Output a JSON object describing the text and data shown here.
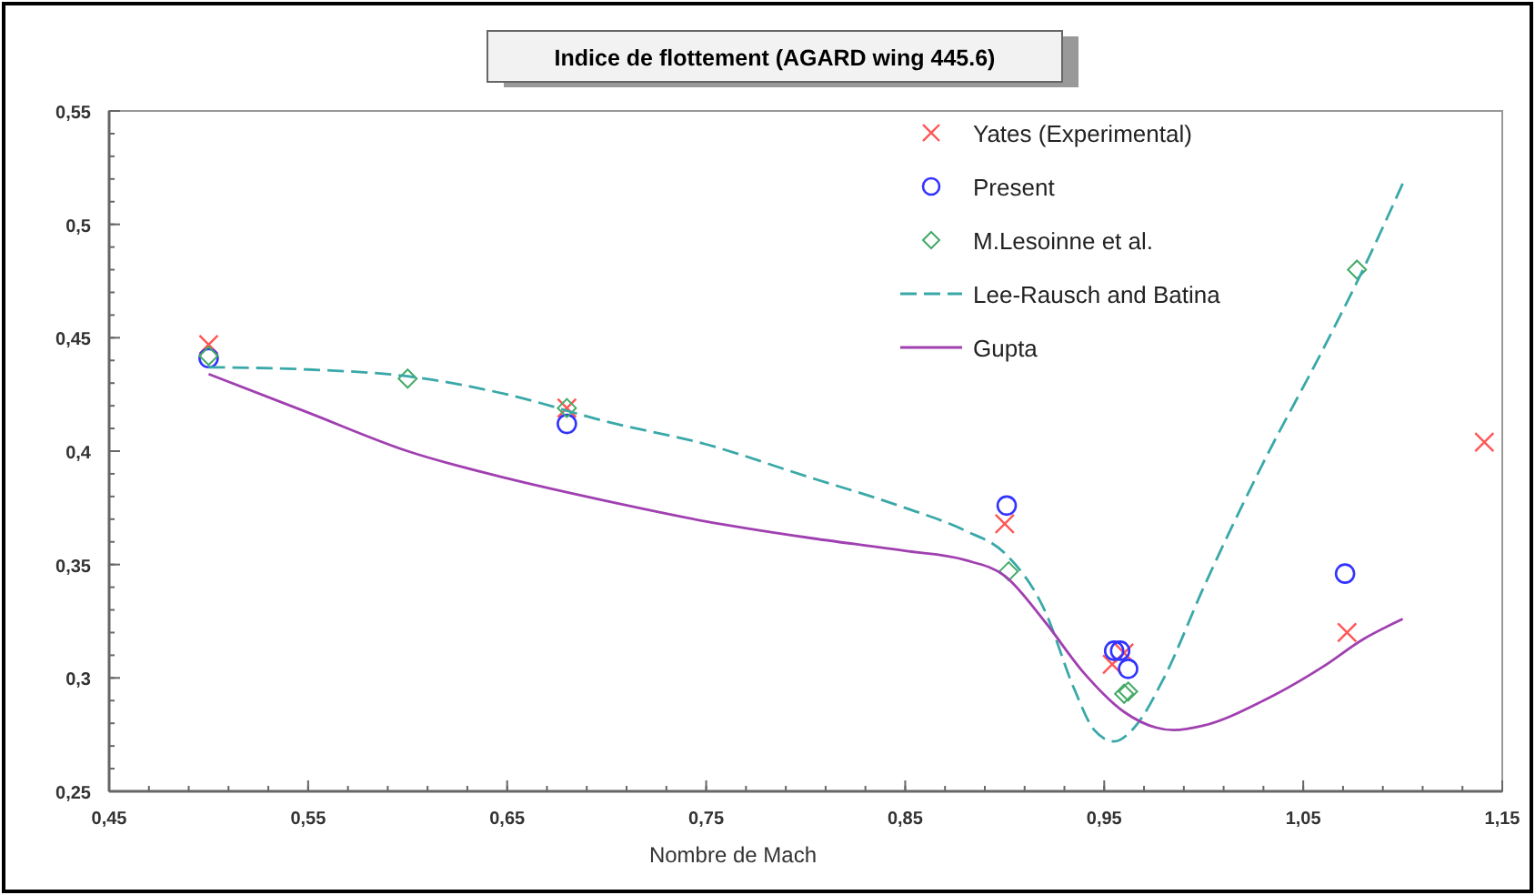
{
  "chart_data": {
    "type": "scatter",
    "title": "Indice de flottement (AGARD wing 445.6)",
    "xlabel": "Nombre de Mach",
    "xlim": [
      0.45,
      1.15
    ],
    "ylim": [
      0.25,
      0.55
    ],
    "xticks": [
      {
        "value": 0.45,
        "label": "0,45"
      },
      {
        "value": 0.55,
        "label": "0,55"
      },
      {
        "value": 0.65,
        "label": "0,65"
      },
      {
        "value": 0.75,
        "label": "0,75"
      },
      {
        "value": 0.85,
        "label": "0,85"
      },
      {
        "value": 0.95,
        "label": "0,95"
      },
      {
        "value": 1.05,
        "label": "1,05"
      },
      {
        "value": 1.15,
        "label": "1,15"
      }
    ],
    "yticks": [
      {
        "value": 0.25,
        "label": "0,25"
      },
      {
        "value": 0.3,
        "label": "0,3"
      },
      {
        "value": 0.35,
        "label": "0,35"
      },
      {
        "value": 0.4,
        "label": "0,4"
      },
      {
        "value": 0.45,
        "label": "0,45"
      },
      {
        "value": 0.5,
        "label": "0,5"
      },
      {
        "value": 0.55,
        "label": "0,55"
      }
    ],
    "grid": false,
    "legend": "top right",
    "series": [
      {
        "name": "Yates (Experimental)",
        "marker": "cross",
        "color": "#ff5555",
        "x": [
          0.5,
          0.68,
          0.9,
          0.954,
          0.96,
          1.072,
          1.141
        ],
        "values": [
          0.447,
          0.419,
          0.368,
          0.306,
          0.311,
          0.32,
          0.404
        ]
      },
      {
        "name": "Present",
        "marker": "circle",
        "color": "#3333ff",
        "x": [
          0.5,
          0.68,
          0.901,
          0.955,
          0.958,
          0.962,
          1.071
        ],
        "values": [
          0.441,
          0.412,
          0.376,
          0.312,
          0.312,
          0.304,
          0.346
        ]
      },
      {
        "name": "M.Lesoinne et al.",
        "marker": "diamond",
        "color": "#44aa66",
        "x": [
          0.5,
          0.6,
          0.68,
          0.902,
          0.96,
          0.962,
          1.077
        ],
        "values": [
          0.442,
          0.432,
          0.419,
          0.347,
          0.293,
          0.294,
          0.48
        ]
      },
      {
        "name": "Lee-Rausch and Batina",
        "type": "line",
        "marker": "none",
        "line_style": "dashed",
        "color": "#3aa8a8",
        "x": [
          0.5,
          0.55,
          0.6,
          0.65,
          0.7,
          0.75,
          0.8,
          0.85,
          0.88,
          0.9,
          0.92,
          0.935,
          0.945,
          0.955,
          0.965,
          0.98,
          1.0,
          1.03,
          1.06,
          1.08,
          1.1
        ],
        "values": [
          0.437,
          0.436,
          0.433,
          0.425,
          0.413,
          0.403,
          0.389,
          0.375,
          0.365,
          0.355,
          0.33,
          0.295,
          0.277,
          0.272,
          0.278,
          0.3,
          0.34,
          0.395,
          0.445,
          0.48,
          0.518
        ]
      },
      {
        "name": "Gupta",
        "type": "line",
        "marker": "none",
        "line_style": "solid",
        "color": "#a040b0",
        "x": [
          0.5,
          0.55,
          0.6,
          0.65,
          0.7,
          0.75,
          0.8,
          0.85,
          0.88,
          0.9,
          0.92,
          0.94,
          0.96,
          0.985,
          1.0,
          1.03,
          1.06,
          1.08,
          1.1
        ],
        "values": [
          0.434,
          0.417,
          0.4,
          0.388,
          0.378,
          0.369,
          0.362,
          0.356,
          0.352,
          0.345,
          0.325,
          0.302,
          0.285,
          0.277,
          0.279,
          0.29,
          0.305,
          0.317,
          0.326
        ]
      }
    ]
  }
}
